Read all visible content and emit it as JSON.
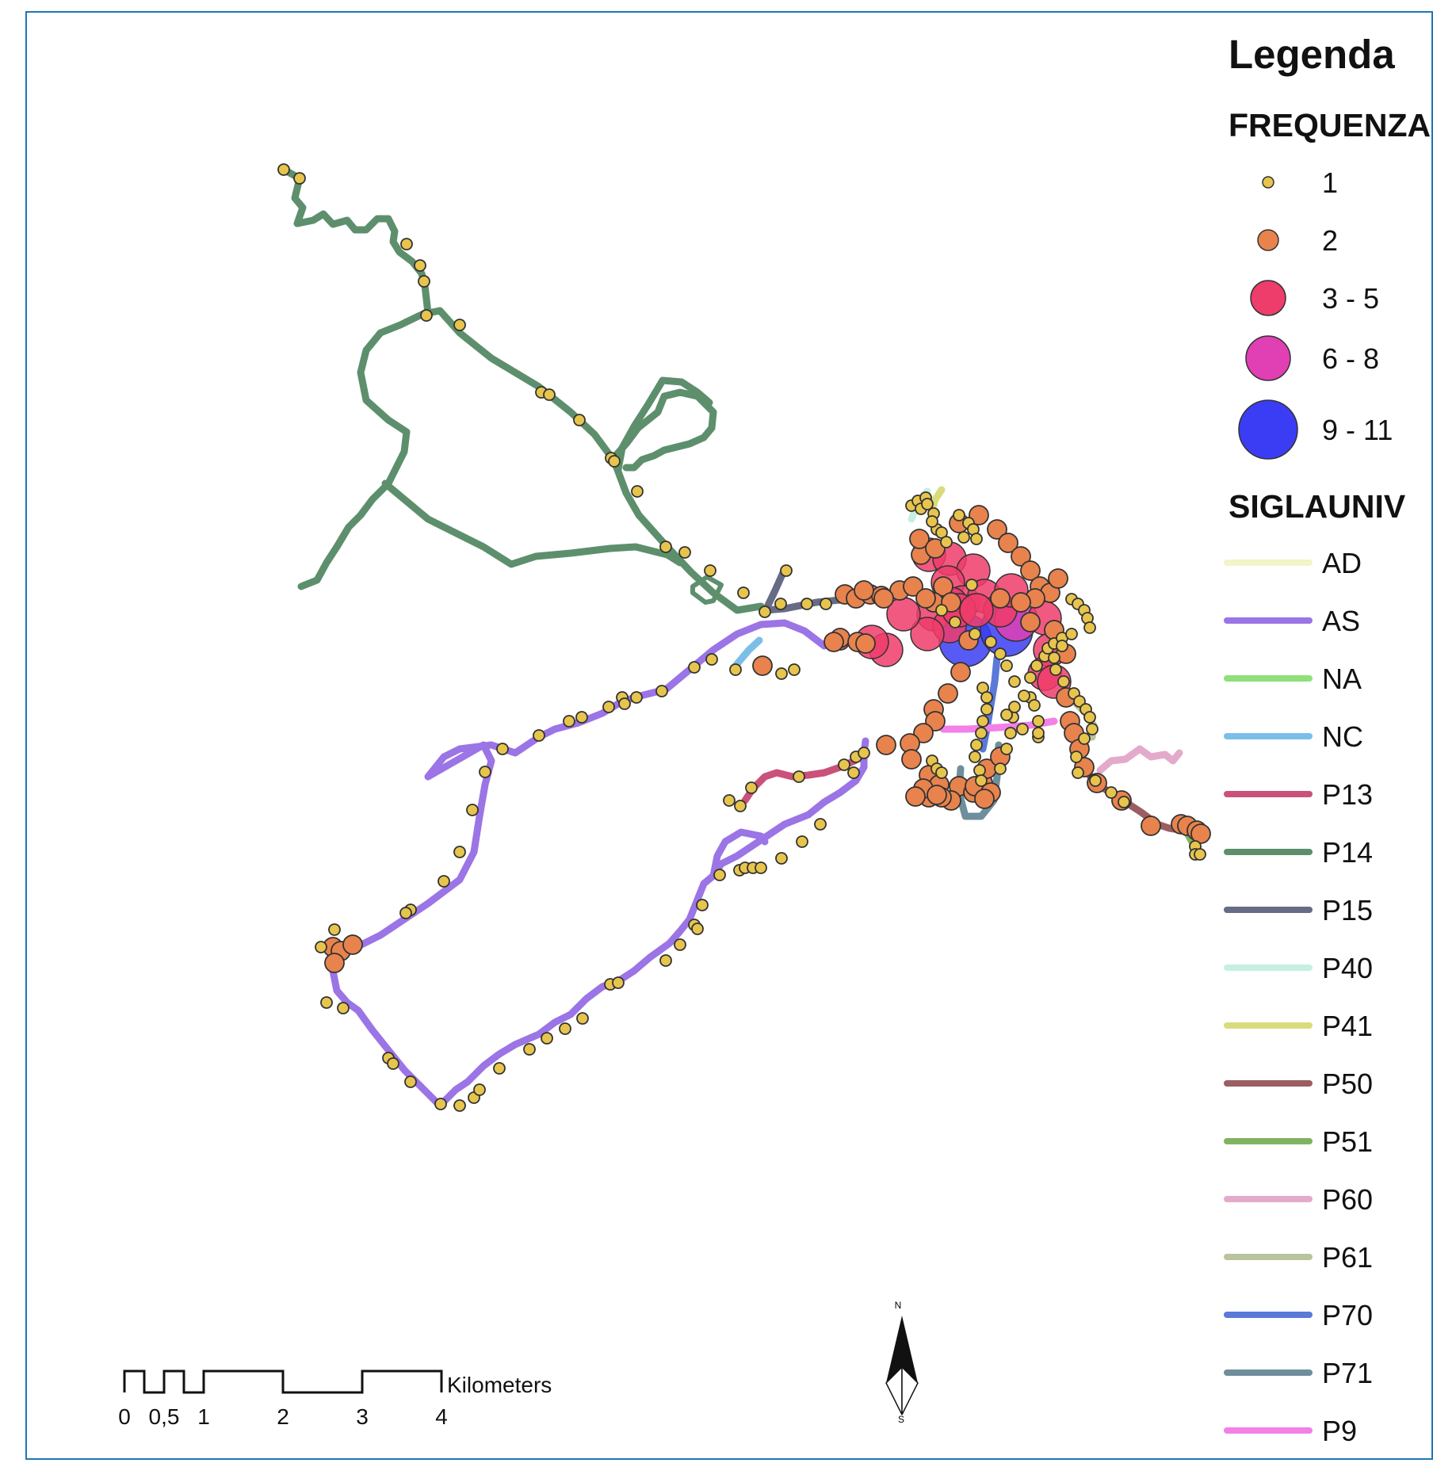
{
  "legend": {
    "title": "Legenda",
    "frequency_title": "FREQUENZA",
    "frequency_classes": [
      {
        "label": "1",
        "color": "#e7c54d"
      },
      {
        "label": "2",
        "color": "#e8834d"
      },
      {
        "label": "3 - 5",
        "color": "#ee3c6b"
      },
      {
        "label": "6 - 8",
        "color": "#e13fb4"
      },
      {
        "label": "9 - 11",
        "color": "#3b3df5"
      }
    ],
    "route_title": "SIGLAUNIV",
    "routes": [
      {
        "label": "AD",
        "color": "#f3f4c8"
      },
      {
        "label": "AS",
        "color": "#9b74e6"
      },
      {
        "label": "NA",
        "color": "#8fe07a"
      },
      {
        "label": "NC",
        "color": "#7bbfe8"
      },
      {
        "label": "P13",
        "color": "#c9517a"
      },
      {
        "label": "P14",
        "color": "#5d8f6d"
      },
      {
        "label": "P15",
        "color": "#686b86"
      },
      {
        "label": "P40",
        "color": "#c5efe2"
      },
      {
        "label": "P41",
        "color": "#d9dc7d"
      },
      {
        "label": "P50",
        "color": "#9a5e63"
      },
      {
        "label": "P51",
        "color": "#82b261"
      },
      {
        "label": "P60",
        "color": "#e3aacb"
      },
      {
        "label": "P61",
        "color": "#b9c49c"
      },
      {
        "label": "P70",
        "color": "#5a79d8"
      },
      {
        "label": "P71",
        "color": "#6f8e9c"
      },
      {
        "label": "P9",
        "color": "#f280e8"
      }
    ]
  },
  "scale_bar": {
    "unit": "Kilometers",
    "ticks": [
      "0",
      "0,5",
      "1",
      "2",
      "3",
      "4"
    ]
  },
  "north_arrow": {
    "north": "N",
    "south": "S"
  }
}
